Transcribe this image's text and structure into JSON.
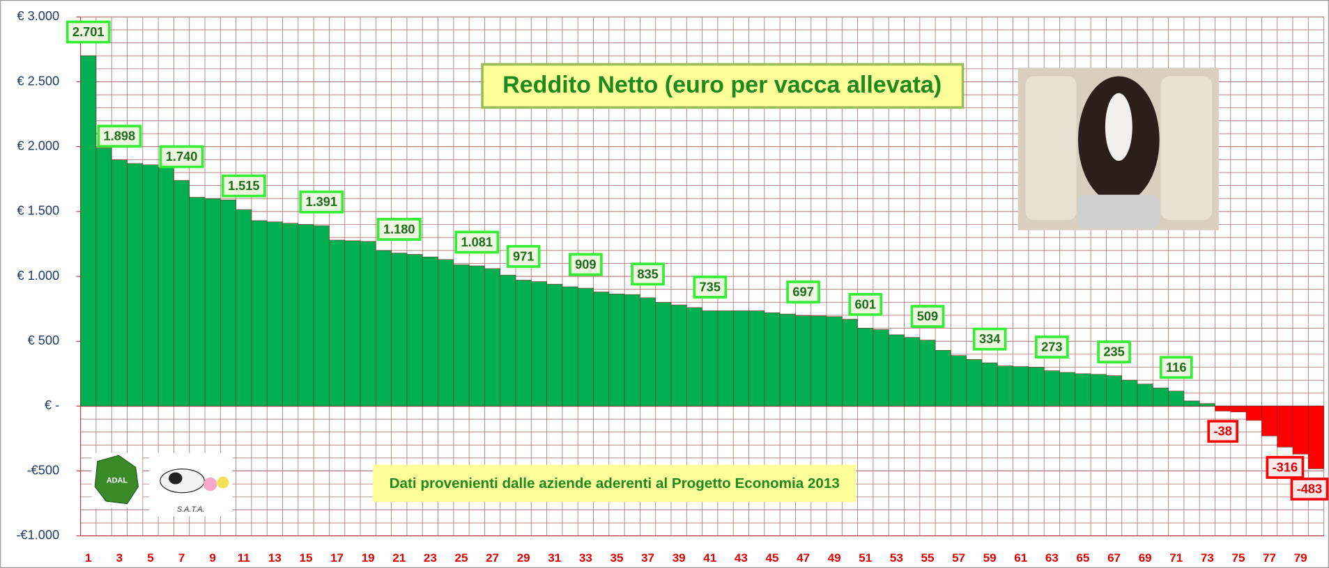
{
  "chart_data": {
    "type": "bar",
    "title": "Reddito Netto (euro per  vacca allevata)",
    "annotation": "Dati  provenienti dalle aziende aderenti al Progetto Economia 2013",
    "logos": [
      "ADAL",
      "S.A.T.A."
    ],
    "categories": [
      1,
      null,
      3,
      null,
      5,
      null,
      7,
      null,
      9,
      null,
      11,
      null,
      13,
      null,
      15,
      null,
      17,
      null,
      19,
      null,
      21,
      null,
      23,
      null,
      25,
      null,
      27,
      null,
      29,
      null,
      31,
      null,
      33,
      null,
      35,
      null,
      37,
      null,
      39,
      null,
      41,
      null,
      43,
      null,
      45,
      null,
      47,
      null,
      49,
      null,
      51,
      null,
      53,
      null,
      55,
      null,
      57,
      null,
      59,
      null,
      61,
      null,
      63,
      null,
      65,
      null,
      67,
      null,
      69,
      null,
      71,
      null,
      73,
      null,
      75,
      null,
      77,
      null,
      79,
      null
    ],
    "values": [
      2701,
      1990,
      1898,
      1870,
      1860,
      1840,
      1740,
      1610,
      1600,
      1590,
      1515,
      1430,
      1420,
      1410,
      1400,
      1391,
      1280,
      1275,
      1270,
      1200,
      1180,
      1170,
      1150,
      1130,
      1090,
      1081,
      1060,
      1010,
      971,
      960,
      940,
      920,
      909,
      880,
      865,
      860,
      835,
      800,
      780,
      760,
      735,
      735,
      735,
      735,
      720,
      710,
      697,
      695,
      690,
      670,
      601,
      590,
      550,
      530,
      509,
      430,
      390,
      360,
      334,
      310,
      305,
      300,
      273,
      260,
      250,
      245,
      235,
      200,
      170,
      140,
      116,
      40,
      20,
      -38,
      -45,
      -110,
      -230,
      -316,
      -370,
      -483
    ],
    "value_labels": [
      "2.701",
      null,
      "1.898",
      null,
      null,
      null,
      "1.740",
      null,
      null,
      null,
      "1.515",
      null,
      null,
      null,
      null,
      "1.391",
      null,
      null,
      null,
      null,
      "1.180",
      null,
      null,
      null,
      null,
      "1.081",
      null,
      null,
      "971",
      null,
      null,
      null,
      "909",
      null,
      null,
      null,
      "835",
      null,
      null,
      null,
      "735",
      null,
      null,
      null,
      null,
      null,
      "697",
      null,
      null,
      null,
      "601",
      null,
      null,
      null,
      "509",
      null,
      null,
      null,
      "334",
      null,
      null,
      null,
      "273",
      null,
      null,
      null,
      "235",
      null,
      null,
      null,
      "116",
      null,
      null,
      "-38",
      null,
      null,
      null,
      "-316",
      null,
      "-483"
    ],
    "color": "#00b050",
    "negative_color": "#ff0000",
    "ylim": [
      -1000,
      3000
    ],
    "yticks": [
      {
        "value": 3000,
        "label": "€ 3.000"
      },
      {
        "value": 2500,
        "label": "€ 2.500"
      },
      {
        "value": 2000,
        "label": "€ 2.000"
      },
      {
        "value": 1500,
        "label": "€ 1.500"
      },
      {
        "value": 1000,
        "label": "€ 1.000"
      },
      {
        "value": 500,
        "label": "€ 500"
      },
      {
        "value": 0,
        "label": "€ -"
      },
      {
        "value": -500,
        "label": "-€500"
      },
      {
        "value": -1000,
        "label": "-€1.000"
      }
    ],
    "grid": true
  }
}
